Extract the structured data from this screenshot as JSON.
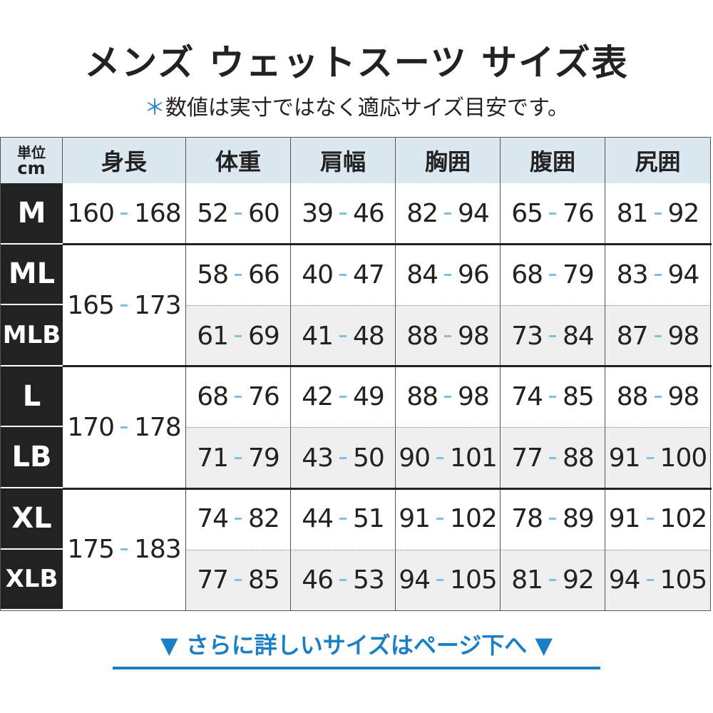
{
  "header": {
    "title": "メンズ ウェットスーツ サイズ表",
    "note_mark": "＊",
    "note": "数値は実寸ではなく適応サイズ目安です。"
  },
  "table": {
    "unit": [
      "単位",
      "cm"
    ],
    "columns": [
      "身長",
      "体重",
      "肩幅",
      "胸囲",
      "腹囲",
      "尻囲"
    ],
    "groups": [
      {
        "height": {
          "min": "160",
          "max": "168"
        },
        "rows": [
          {
            "size": "M",
            "values": [
              {
                "min": "52",
                "max": "60"
              },
              {
                "min": "39",
                "max": "46"
              },
              {
                "min": "82",
                "max": "94"
              },
              {
                "min": "65",
                "max": "76"
              },
              {
                "min": "81",
                "max": "92"
              }
            ]
          }
        ]
      },
      {
        "height": {
          "min": "165",
          "max": "173"
        },
        "rows": [
          {
            "size": "ML",
            "values": [
              {
                "min": "58",
                "max": "66"
              },
              {
                "min": "40",
                "max": "47"
              },
              {
                "min": "84",
                "max": "96"
              },
              {
                "min": "68",
                "max": "79"
              },
              {
                "min": "83",
                "max": "94"
              }
            ]
          },
          {
            "size": "MLB",
            "values": [
              {
                "min": "61",
                "max": "69"
              },
              {
                "min": "41",
                "max": "48"
              },
              {
                "min": "88",
                "max": "98"
              },
              {
                "min": "73",
                "max": "84"
              },
              {
                "min": "87",
                "max": "98"
              }
            ]
          }
        ]
      },
      {
        "height": {
          "min": "170",
          "max": "178"
        },
        "rows": [
          {
            "size": "L",
            "values": [
              {
                "min": "68",
                "max": "76"
              },
              {
                "min": "42",
                "max": "49"
              },
              {
                "min": "88",
                "max": "98"
              },
              {
                "min": "74",
                "max": "85"
              },
              {
                "min": "88",
                "max": "98"
              }
            ]
          },
          {
            "size": "LB",
            "values": [
              {
                "min": "71",
                "max": "79"
              },
              {
                "min": "43",
                "max": "50"
              },
              {
                "min": "90",
                "max": "101"
              },
              {
                "min": "77",
                "max": "88"
              },
              {
                "min": "91",
                "max": "100"
              }
            ]
          }
        ]
      },
      {
        "height": {
          "min": "175",
          "max": "183"
        },
        "rows": [
          {
            "size": "XL",
            "values": [
              {
                "min": "74",
                "max": "82"
              },
              {
                "min": "44",
                "max": "51"
              },
              {
                "min": "91",
                "max": "102"
              },
              {
                "min": "78",
                "max": "89"
              },
              {
                "min": "91",
                "max": "102"
              }
            ]
          },
          {
            "size": "XLB",
            "values": [
              {
                "min": "77",
                "max": "85"
              },
              {
                "min": "46",
                "max": "53"
              },
              {
                "min": "94",
                "max": "105"
              },
              {
                "min": "81",
                "max": "92"
              },
              {
                "min": "94",
                "max": "105"
              }
            ]
          }
        ]
      }
    ]
  },
  "footer": {
    "link": "さらに詳しいサイズはページ下へ"
  }
}
